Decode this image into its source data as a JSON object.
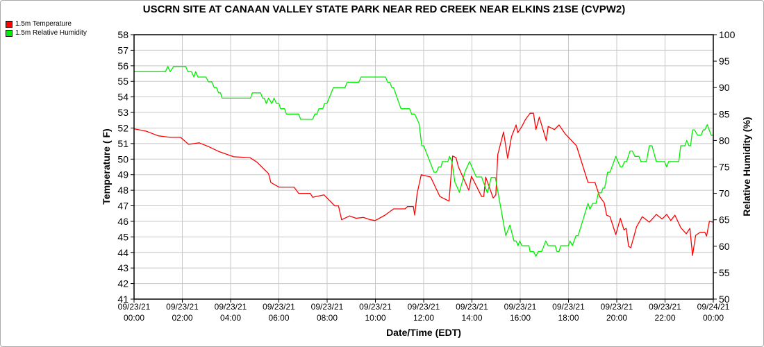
{
  "chart_data": {
    "type": "line",
    "title": "USCRN SITE AT CANAAN VALLEY STATE PARK NEAR RED CREEK NEAR ELKINS 21SE (CVPW2)",
    "xlabel": "Date/Time (EDT)",
    "ylabel": "Temperature ( F)",
    "y2label": "Relative Humidity (%)",
    "xlim_hours": [
      0,
      24
    ],
    "ylim": [
      41,
      58
    ],
    "y2lim": [
      50,
      100
    ],
    "grid": true,
    "legend_position": "top-left",
    "x_ticks": [
      {
        "h": 0,
        "date": "09/23/21",
        "time": "00:00"
      },
      {
        "h": 2,
        "date": "09/23/21",
        "time": "02:00"
      },
      {
        "h": 4,
        "date": "09/23/21",
        "time": "04:00"
      },
      {
        "h": 6,
        "date": "09/23/21",
        "time": "06:00"
      },
      {
        "h": 8,
        "date": "09/23/21",
        "time": "08:00"
      },
      {
        "h": 10,
        "date": "09/23/21",
        "time": "10:00"
      },
      {
        "h": 12,
        "date": "09/23/21",
        "time": "12:00"
      },
      {
        "h": 14,
        "date": "09/23/21",
        "time": "14:00"
      },
      {
        "h": 16,
        "date": "09/23/21",
        "time": "16:00"
      },
      {
        "h": 18,
        "date": "09/23/21",
        "time": "18:00"
      },
      {
        "h": 20,
        "date": "09/23/21",
        "time": "20:00"
      },
      {
        "h": 22,
        "date": "09/23/21",
        "time": "22:00"
      },
      {
        "h": 24,
        "date": "09/24/21",
        "time": "00:00"
      }
    ],
    "y_ticks": [
      "41",
      "42",
      "43",
      "44",
      "45",
      "46",
      "47",
      "48",
      "49",
      "50",
      "51",
      "52",
      "53",
      "54",
      "55",
      "56",
      "57",
      "58"
    ],
    "y2_ticks": [
      "50",
      "55",
      "60",
      "65",
      "70",
      "75",
      "80",
      "85",
      "90",
      "95",
      "100"
    ],
    "series": [
      {
        "name": "1.5m Temperature",
        "color": "#ff0000",
        "axis": "left",
        "points": [
          [
            0,
            51.95
          ],
          [
            0.5,
            51.8
          ],
          [
            1,
            51.5
          ],
          [
            1.5,
            51.4
          ],
          [
            1.93,
            51.4
          ],
          [
            2.26,
            50.95
          ],
          [
            2.7,
            51.05
          ],
          [
            3.1,
            50.8
          ],
          [
            3.5,
            50.5
          ],
          [
            4.13,
            50.15
          ],
          [
            4.8,
            50.1
          ],
          [
            5.1,
            49.8
          ],
          [
            5.57,
            49.07
          ],
          [
            5.67,
            48.5
          ],
          [
            6.0,
            48.2
          ],
          [
            6.63,
            48.2
          ],
          [
            6.82,
            47.8
          ],
          [
            7.3,
            47.8
          ],
          [
            7.4,
            47.55
          ],
          [
            7.87,
            47.7
          ],
          [
            8.31,
            47.0
          ],
          [
            8.47,
            47.0
          ],
          [
            8.6,
            46.1
          ],
          [
            8.93,
            46.35
          ],
          [
            9.2,
            46.2
          ],
          [
            9.5,
            46.25
          ],
          [
            9.8,
            46.1
          ],
          [
            9.99,
            46.05
          ],
          [
            10.4,
            46.4
          ],
          [
            10.75,
            46.8
          ],
          [
            11.23,
            46.8
          ],
          [
            11.33,
            46.95
          ],
          [
            11.57,
            46.95
          ],
          [
            11.63,
            46.4
          ],
          [
            11.73,
            47.8
          ],
          [
            11.9,
            49.0
          ],
          [
            12.29,
            48.85
          ],
          [
            12.67,
            47.6
          ],
          [
            13.05,
            47.3
          ],
          [
            13.2,
            50.2
          ],
          [
            13.34,
            50.1
          ],
          [
            13.44,
            49.5
          ],
          [
            13.87,
            48.0
          ],
          [
            13.98,
            48.9
          ],
          [
            14.4,
            47.6
          ],
          [
            14.49,
            47.6
          ],
          [
            14.57,
            48.85
          ],
          [
            14.88,
            47.5
          ],
          [
            14.99,
            47.7
          ],
          [
            15.07,
            50.3
          ],
          [
            15.31,
            51.75
          ],
          [
            15.48,
            50.05
          ],
          [
            15.64,
            51.45
          ],
          [
            15.83,
            52.2
          ],
          [
            15.9,
            51.7
          ],
          [
            16.07,
            52.1
          ],
          [
            16.22,
            52.55
          ],
          [
            16.41,
            52.95
          ],
          [
            16.55,
            52.95
          ],
          [
            16.65,
            51.9
          ],
          [
            16.79,
            52.7
          ],
          [
            17.08,
            51.2
          ],
          [
            17.16,
            52.1
          ],
          [
            17.42,
            51.9
          ],
          [
            17.61,
            52.2
          ],
          [
            17.85,
            51.65
          ],
          [
            18.33,
            50.86
          ],
          [
            18.81,
            48.5
          ],
          [
            19.1,
            48.5
          ],
          [
            19.29,
            47.6
          ],
          [
            19.48,
            47.2
          ],
          [
            19.58,
            46.4
          ],
          [
            19.72,
            46.3
          ],
          [
            19.96,
            45.15
          ],
          [
            20.15,
            46.2
          ],
          [
            20.3,
            45.45
          ],
          [
            20.39,
            45.55
          ],
          [
            20.49,
            44.4
          ],
          [
            20.58,
            44.3
          ],
          [
            20.82,
            45.65
          ],
          [
            21.06,
            46.3
          ],
          [
            21.35,
            45.95
          ],
          [
            21.64,
            46.45
          ],
          [
            21.88,
            46.15
          ],
          [
            22.07,
            46.45
          ],
          [
            22.24,
            46.05
          ],
          [
            22.41,
            46.4
          ],
          [
            22.65,
            45.6
          ],
          [
            22.88,
            45.2
          ],
          [
            23.03,
            45.55
          ],
          [
            23.14,
            43.8
          ],
          [
            23.27,
            45.1
          ],
          [
            23.46,
            45.3
          ],
          [
            23.65,
            45.3
          ],
          [
            23.72,
            45.05
          ],
          [
            23.84,
            46.0
          ],
          [
            23.99,
            45.95
          ]
        ]
      },
      {
        "name": "1.5m Relative Humidity",
        "color": "#00ee00",
        "axis": "right",
        "points": [
          [
            0,
            93
          ],
          [
            1.3,
            93
          ],
          [
            1.4,
            94
          ],
          [
            1.5,
            93
          ],
          [
            1.64,
            94
          ],
          [
            2.14,
            94
          ],
          [
            2.23,
            93
          ],
          [
            2.38,
            93
          ],
          [
            2.48,
            92
          ],
          [
            2.55,
            93
          ],
          [
            2.65,
            92
          ],
          [
            2.98,
            92
          ],
          [
            3.08,
            91.1
          ],
          [
            3.22,
            91.1
          ],
          [
            3.32,
            90
          ],
          [
            3.42,
            90
          ],
          [
            3.5,
            89
          ],
          [
            3.58,
            89
          ],
          [
            3.65,
            88
          ],
          [
            4.83,
            88
          ],
          [
            4.9,
            89
          ],
          [
            5.24,
            89
          ],
          [
            5.33,
            88
          ],
          [
            5.4,
            88
          ],
          [
            5.48,
            87
          ],
          [
            5.57,
            88
          ],
          [
            5.71,
            87
          ],
          [
            5.8,
            88
          ],
          [
            5.9,
            87
          ],
          [
            6.0,
            87
          ],
          [
            6.07,
            86
          ],
          [
            6.24,
            86
          ],
          [
            6.31,
            85
          ],
          [
            6.82,
            85
          ],
          [
            6.9,
            84
          ],
          [
            7.4,
            84
          ],
          [
            7.49,
            85
          ],
          [
            7.58,
            85
          ],
          [
            7.66,
            86
          ],
          [
            7.82,
            86
          ],
          [
            7.89,
            87
          ],
          [
            7.99,
            87
          ],
          [
            8.26,
            90
          ],
          [
            8.74,
            90
          ],
          [
            8.83,
            91
          ],
          [
            9.31,
            91
          ],
          [
            9.41,
            92
          ],
          [
            10.42,
            92
          ],
          [
            10.51,
            91
          ],
          [
            10.6,
            91
          ],
          [
            10.68,
            90
          ],
          [
            10.75,
            90
          ],
          [
            11.06,
            86
          ],
          [
            11.42,
            86
          ],
          [
            11.5,
            85
          ],
          [
            11.63,
            85
          ],
          [
            11.81,
            83.2
          ],
          [
            11.92,
            79
          ],
          [
            12.0,
            79
          ],
          [
            12.43,
            74
          ],
          [
            12.53,
            74
          ],
          [
            12.62,
            75
          ],
          [
            12.72,
            75
          ],
          [
            12.77,
            76
          ],
          [
            13.0,
            76
          ],
          [
            13.07,
            77
          ],
          [
            13.17,
            76
          ],
          [
            13.29,
            72.2
          ],
          [
            13.48,
            70.2
          ],
          [
            13.72,
            74.2
          ],
          [
            13.9,
            76
          ],
          [
            14.18,
            73.1
          ],
          [
            14.4,
            73.1
          ],
          [
            14.64,
            70.1
          ],
          [
            14.8,
            73
          ],
          [
            14.97,
            73
          ],
          [
            15.4,
            62
          ],
          [
            15.57,
            64
          ],
          [
            15.74,
            61
          ],
          [
            15.83,
            61
          ],
          [
            15.91,
            60.1
          ],
          [
            15.98,
            61
          ],
          [
            16.07,
            60.1
          ],
          [
            16.36,
            60.1
          ],
          [
            16.41,
            59
          ],
          [
            16.55,
            59
          ],
          [
            16.65,
            58.1
          ],
          [
            16.75,
            59
          ],
          [
            16.89,
            59
          ],
          [
            17.06,
            61
          ],
          [
            17.16,
            60.1
          ],
          [
            17.45,
            60.1
          ],
          [
            17.52,
            59
          ],
          [
            17.61,
            59
          ],
          [
            17.68,
            60.1
          ],
          [
            18.0,
            60.1
          ],
          [
            18.06,
            61
          ],
          [
            18.16,
            60.1
          ],
          [
            18.31,
            62
          ],
          [
            18.4,
            62
          ],
          [
            18.81,
            68.1
          ],
          [
            18.89,
            67
          ],
          [
            19.0,
            68.1
          ],
          [
            19.14,
            68.1
          ],
          [
            19.24,
            70.1
          ],
          [
            19.36,
            70.1
          ],
          [
            19.43,
            71
          ],
          [
            19.5,
            71
          ],
          [
            19.62,
            74
          ],
          [
            19.72,
            74
          ],
          [
            19.96,
            77
          ],
          [
            20.15,
            75
          ],
          [
            20.23,
            75
          ],
          [
            20.32,
            76
          ],
          [
            20.41,
            76
          ],
          [
            20.55,
            78
          ],
          [
            20.65,
            78
          ],
          [
            20.75,
            77
          ],
          [
            20.92,
            77
          ],
          [
            21.0,
            76
          ],
          [
            21.23,
            76
          ],
          [
            21.35,
            79
          ],
          [
            21.46,
            79
          ],
          [
            21.64,
            76
          ],
          [
            21.98,
            76
          ],
          [
            22.07,
            75
          ],
          [
            22.15,
            76
          ],
          [
            22.57,
            76
          ],
          [
            22.65,
            79
          ],
          [
            22.82,
            79
          ],
          [
            22.9,
            80
          ],
          [
            22.99,
            79
          ],
          [
            23.06,
            79
          ],
          [
            23.14,
            82
          ],
          [
            23.22,
            82
          ],
          [
            23.35,
            81
          ],
          [
            23.5,
            81
          ],
          [
            23.58,
            82
          ],
          [
            23.65,
            82
          ],
          [
            23.75,
            83
          ],
          [
            23.91,
            81
          ],
          [
            24.0,
            81
          ]
        ]
      }
    ]
  }
}
